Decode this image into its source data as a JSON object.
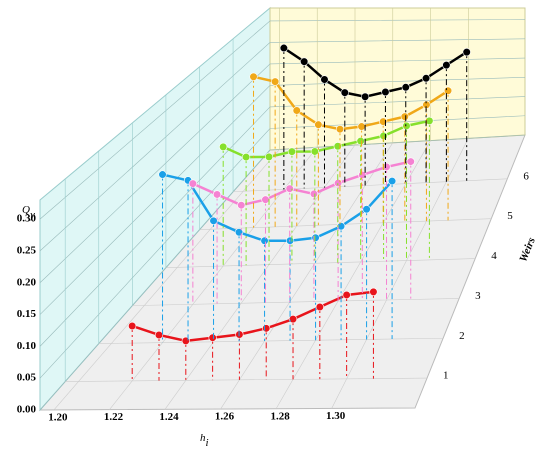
{
  "chart_data": {
    "type": "line3d",
    "ylabel": {
      "main": "Q",
      "sub": "y"
    },
    "xlabel": {
      "main": "h",
      "sub": "i"
    },
    "zlabel": "Weirs",
    "xlim": [
      1.195,
      1.33
    ],
    "xticks": [
      {
        "value": 1.2,
        "label": "1.20"
      },
      {
        "value": 1.22,
        "label": "1.22"
      },
      {
        "value": 1.24,
        "label": "1.24"
      },
      {
        "value": 1.26,
        "label": "1.26"
      },
      {
        "value": 1.28,
        "label": "1.28"
      },
      {
        "value": 1.3,
        "label": "1.30"
      }
    ],
    "ylim": [
      0,
      0.33
    ],
    "yticks": [
      {
        "value": 0,
        "label": "0.00"
      },
      {
        "value": 0.05,
        "label": "0.05"
      },
      {
        "value": 0.1,
        "label": "0.10"
      },
      {
        "value": 0.15,
        "label": "0.15"
      },
      {
        "value": 0.2,
        "label": "0.20"
      },
      {
        "value": 0.25,
        "label": "0.25"
      },
      {
        "value": 0.3,
        "label": "0.30"
      }
    ],
    "zlim": [
      0.25,
      7.1
    ],
    "zticks": [
      1,
      2,
      3,
      4,
      5,
      6
    ],
    "x": [
      1.22,
      1.23,
      1.24,
      1.25,
      1.26,
      1.27,
      1.28,
      1.29,
      1.3,
      1.31
    ],
    "series": [
      {
        "z": 1,
        "color": "#e8141b",
        "values": [
          0.09,
          0.075,
          0.065,
          0.07,
          0.075,
          0.085,
          0.1,
          0.12,
          0.14,
          0.145
        ]
      },
      {
        "z": 2,
        "color": "#1aa0e8",
        "values": [
          0.29,
          0.28,
          0.21,
          0.19,
          0.175,
          0.175,
          0.18,
          0.2,
          0.23,
          0.28
        ]
      },
      {
        "z": 3,
        "color": "#f582d2",
        "values": [
          0.22,
          0.2,
          0.18,
          0.19,
          0.21,
          0.2,
          0.22,
          0.235,
          0.25,
          0.26
        ]
      },
      {
        "z": 4,
        "color": "#86e02c",
        "values": [
          0.23,
          0.21,
          0.21,
          0.22,
          0.22,
          0.23,
          0.24,
          0.25,
          0.27,
          0.28
        ]
      },
      {
        "z": 5,
        "color": "#f0a818",
        "values": [
          0.31,
          0.3,
          0.24,
          0.21,
          0.2,
          0.205,
          0.215,
          0.225,
          0.25,
          0.28
        ]
      },
      {
        "z": 6,
        "color": "#000000",
        "values": [
          0.31,
          0.28,
          0.24,
          0.21,
          0.2,
          0.21,
          0.22,
          0.24,
          0.27,
          0.3
        ]
      }
    ]
  }
}
